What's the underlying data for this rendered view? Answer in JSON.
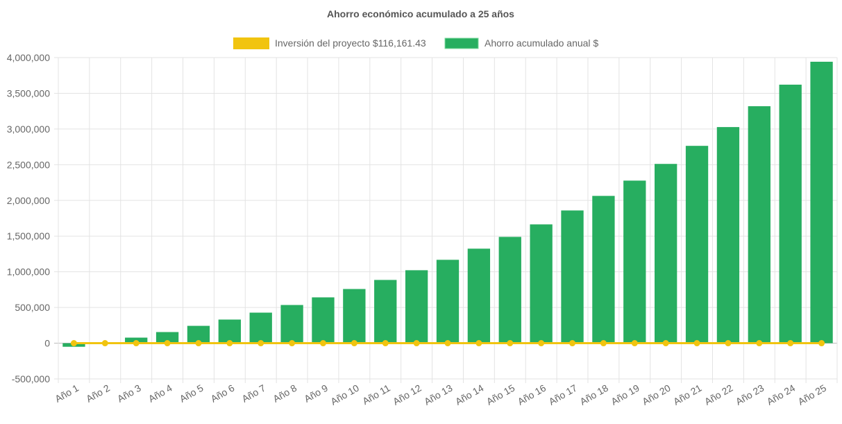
{
  "chart_data": {
    "type": "bar",
    "title": "Ahorro económico acumulado a 25 años",
    "xlabel": "",
    "ylabel": "",
    "ylim": [
      -500000,
      4000000
    ],
    "ytick_step": 500000,
    "yticks": [
      "-500,000",
      "0",
      "500,000",
      "1,000,000",
      "1,500,000",
      "2,000,000",
      "2,500,000",
      "3,000,000",
      "3,500,000",
      "4,000,000"
    ],
    "grid": true,
    "legend_position": "top",
    "categories": [
      "Año 1",
      "Año 2",
      "Año 3",
      "Año 4",
      "Año 5",
      "Año 6",
      "Año 7",
      "Año 8",
      "Año 9",
      "Año 10",
      "Año 11",
      "Año 12",
      "Año 13",
      "Año 14",
      "Año 15",
      "Año 16",
      "Año 17",
      "Año 18",
      "Año 19",
      "Año 20",
      "Año 21",
      "Año 22",
      "Año 23",
      "Año 24",
      "Año 25"
    ],
    "series": [
      {
        "name": "Inversión del proyecto $116,161.43",
        "type": "line",
        "color": "#f1c40f",
        "values": [
          0,
          0,
          0,
          0,
          0,
          0,
          0,
          0,
          0,
          0,
          0,
          0,
          0,
          0,
          0,
          0,
          0,
          0,
          0,
          0,
          0,
          0,
          0,
          0,
          0
        ]
      },
      {
        "name": "Ahorro acumulado anual $",
        "type": "bar",
        "color": "#27ae60",
        "values": [
          -50000,
          5000,
          78000,
          156000,
          243000,
          331000,
          428000,
          535000,
          642000,
          759000,
          886000,
          1022000,
          1168000,
          1324000,
          1489000,
          1664000,
          1859000,
          2063000,
          2277000,
          2511000,
          2764000,
          3027000,
          3319000,
          3621000,
          3942000
        ]
      }
    ]
  }
}
